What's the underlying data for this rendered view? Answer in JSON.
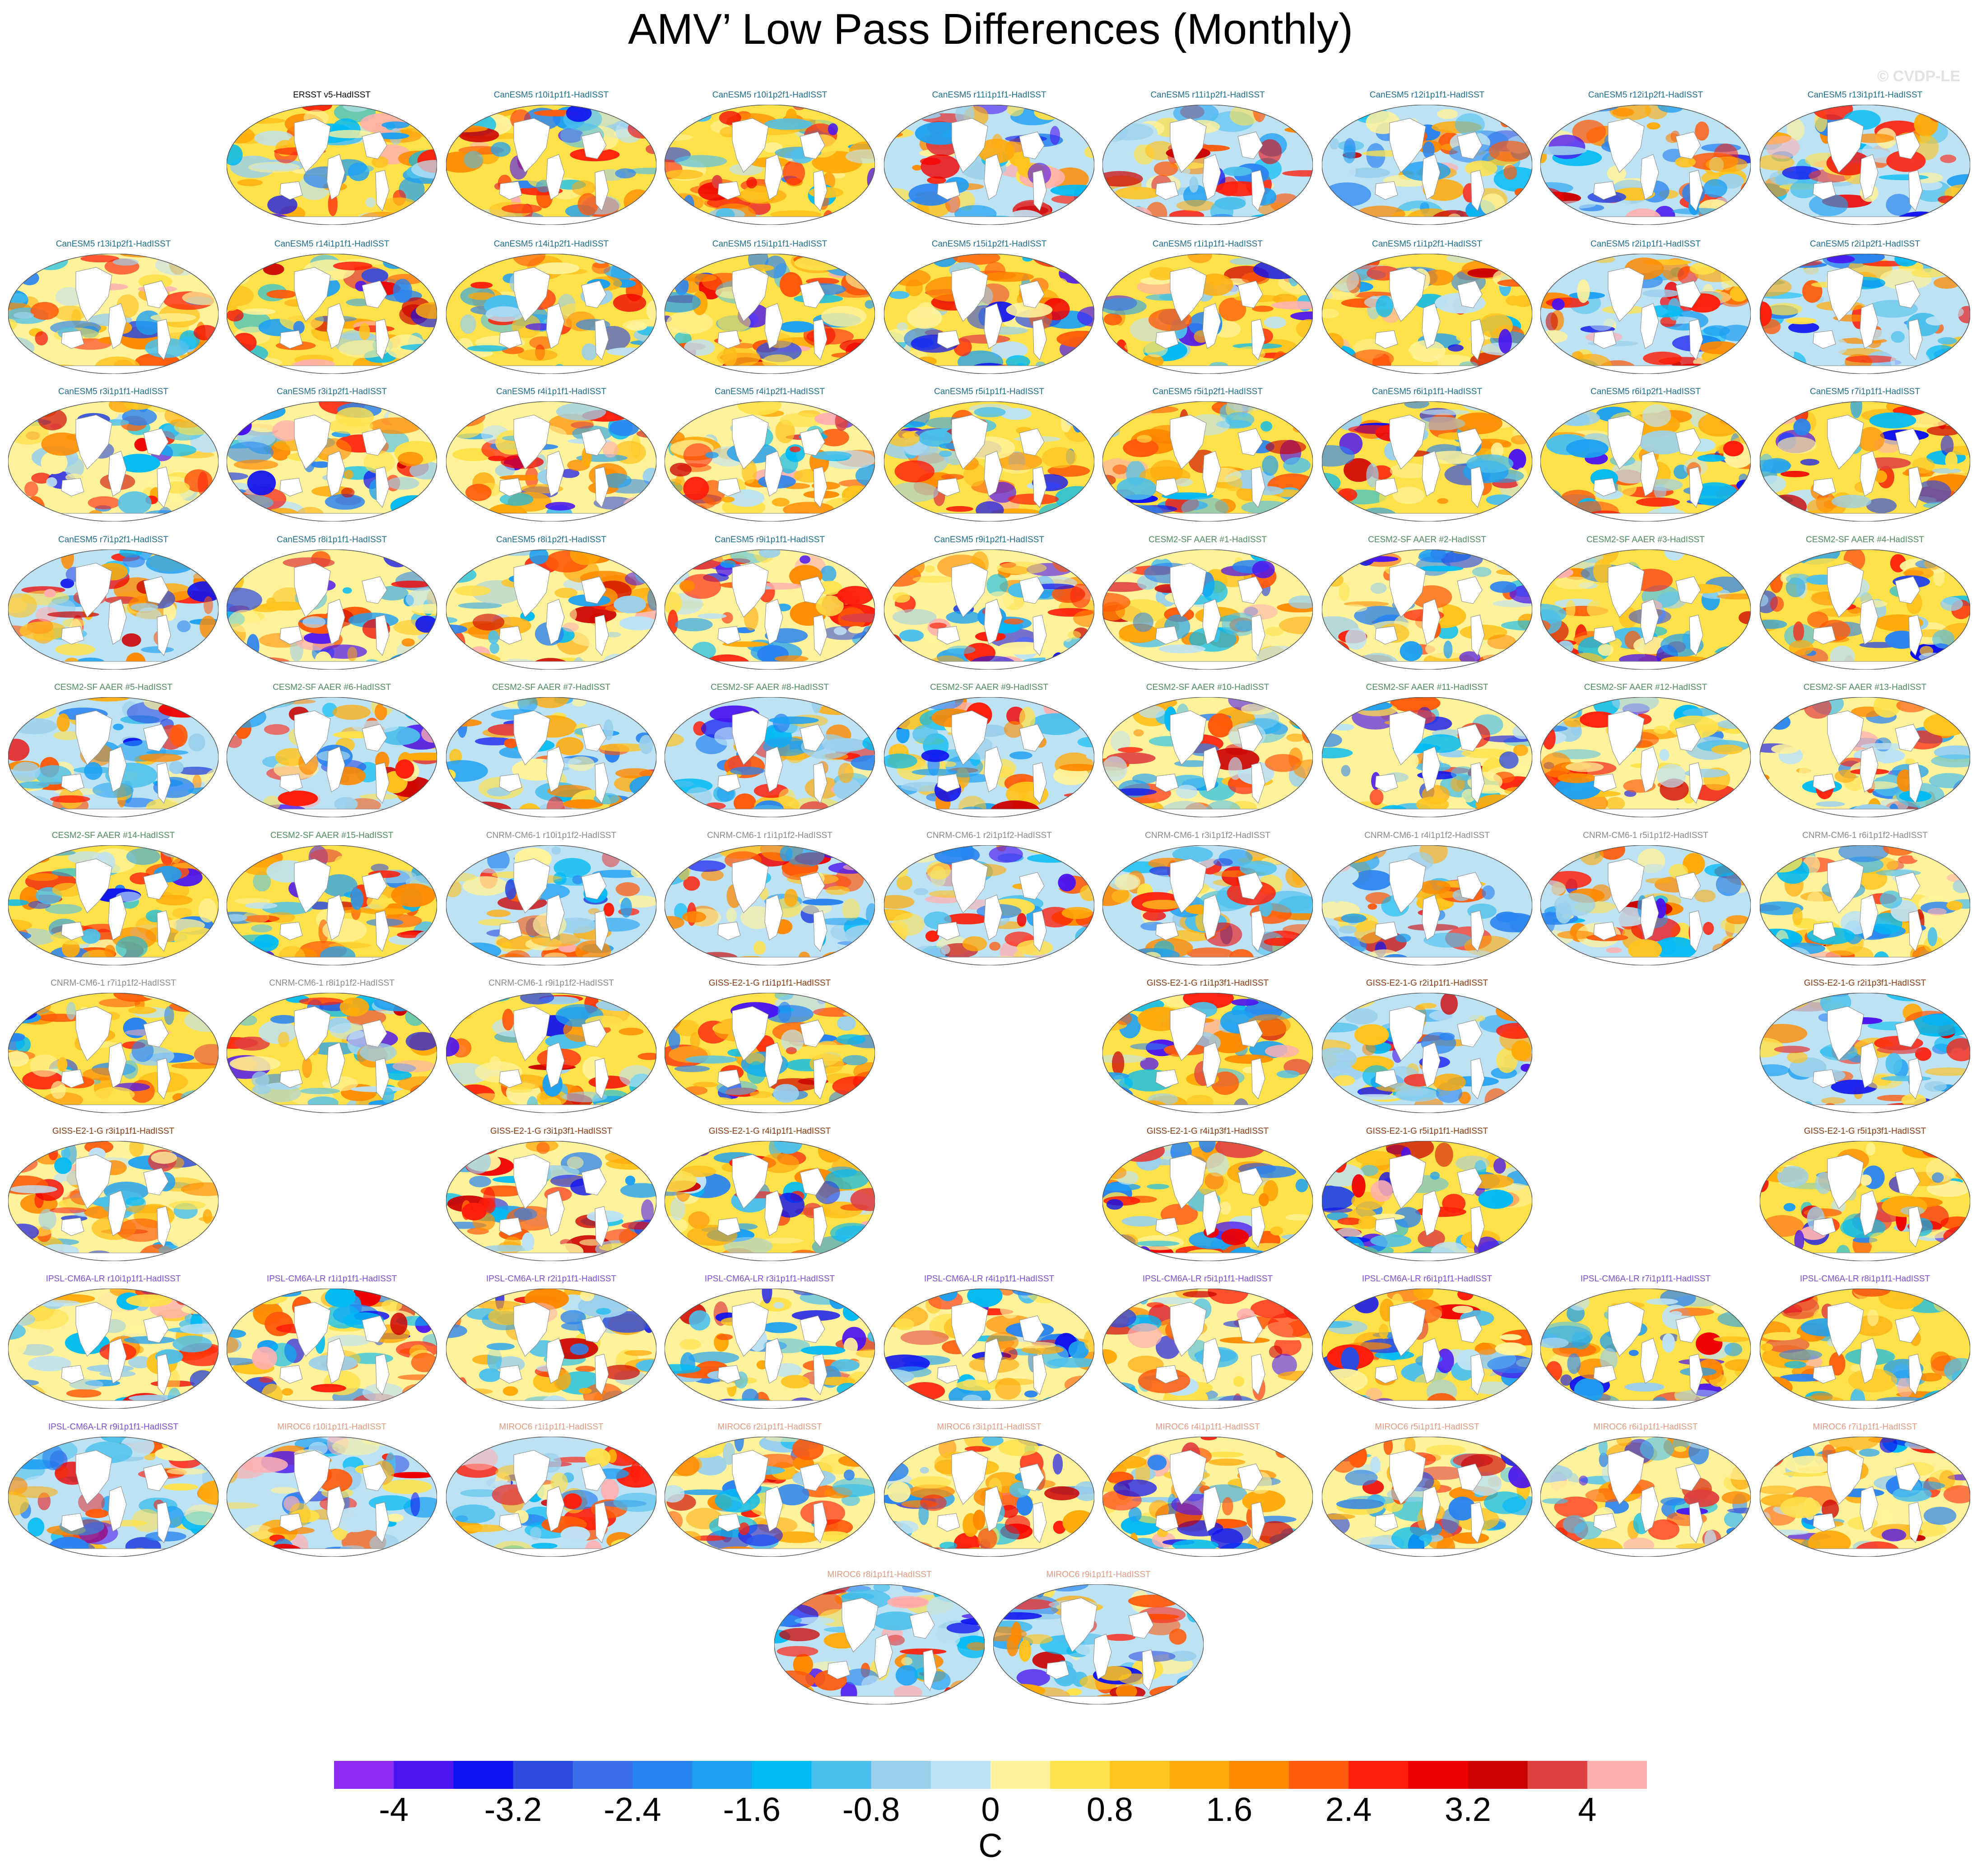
{
  "title": "AMV’ Low Pass Differences (Monthly)",
  "watermark": "© CVDP-LE",
  "colors": {
    "ERSST": "#000000",
    "CanESM5": "#1f6e8c",
    "CESM2": "#4e8a5e",
    "CNRM": "#8a8a8a",
    "GISS": "#8b3a0f",
    "IPSL": "#7a4fd6",
    "MIROC": "#e39a80"
  },
  "rows": [
    [
      {
        "col": 1,
        "label": "ERSST v5-HadISST",
        "group": "ERSST"
      },
      {
        "col": 2,
        "label": "CanESM5 r10i1p1f1-HadISST",
        "group": "CanESM5"
      },
      {
        "col": 3,
        "label": "CanESM5 r10i1p2f1-HadISST",
        "group": "CanESM5"
      },
      {
        "col": 4,
        "label": "CanESM5 r11i1p1f1-HadISST",
        "group": "CanESM5"
      },
      {
        "col": 5,
        "label": "CanESM5 r11i1p2f1-HadISST",
        "group": "CanESM5"
      },
      {
        "col": 6,
        "label": "CanESM5 r12i1p1f1-HadISST",
        "group": "CanESM5"
      },
      {
        "col": 7,
        "label": "CanESM5 r12i1p2f1-HadISST",
        "group": "CanESM5"
      },
      {
        "col": 8,
        "label": "CanESM5 r13i1p1f1-HadISST",
        "group": "CanESM5"
      }
    ],
    [
      {
        "col": 0,
        "label": "CanESM5 r13i1p2f1-HadISST",
        "group": "CanESM5"
      },
      {
        "col": 1,
        "label": "CanESM5 r14i1p1f1-HadISST",
        "group": "CanESM5"
      },
      {
        "col": 2,
        "label": "CanESM5 r14i1p2f1-HadISST",
        "group": "CanESM5"
      },
      {
        "col": 3,
        "label": "CanESM5 r15i1p1f1-HadISST",
        "group": "CanESM5"
      },
      {
        "col": 4,
        "label": "CanESM5 r15i1p2f1-HadISST",
        "group": "CanESM5"
      },
      {
        "col": 5,
        "label": "CanESM5 r1i1p1f1-HadISST",
        "group": "CanESM5"
      },
      {
        "col": 6,
        "label": "CanESM5 r1i1p2f1-HadISST",
        "group": "CanESM5"
      },
      {
        "col": 7,
        "label": "CanESM5 r2i1p1f1-HadISST",
        "group": "CanESM5"
      },
      {
        "col": 8,
        "label": "CanESM5 r2i1p2f1-HadISST",
        "group": "CanESM5"
      }
    ],
    [
      {
        "col": 0,
        "label": "CanESM5 r3i1p1f1-HadISST",
        "group": "CanESM5"
      },
      {
        "col": 1,
        "label": "CanESM5 r3i1p2f1-HadISST",
        "group": "CanESM5"
      },
      {
        "col": 2,
        "label": "CanESM5 r4i1p1f1-HadISST",
        "group": "CanESM5"
      },
      {
        "col": 3,
        "label": "CanESM5 r4i1p2f1-HadISST",
        "group": "CanESM5"
      },
      {
        "col": 4,
        "label": "CanESM5 r5i1p1f1-HadISST",
        "group": "CanESM5"
      },
      {
        "col": 5,
        "label": "CanESM5 r5i1p2f1-HadISST",
        "group": "CanESM5"
      },
      {
        "col": 6,
        "label": "CanESM5 r6i1p1f1-HadISST",
        "group": "CanESM5"
      },
      {
        "col": 7,
        "label": "CanESM5 r6i1p2f1-HadISST",
        "group": "CanESM5"
      },
      {
        "col": 8,
        "label": "CanESM5 r7i1p1f1-HadISST",
        "group": "CanESM5"
      }
    ],
    [
      {
        "col": 0,
        "label": "CanESM5 r7i1p2f1-HadISST",
        "group": "CanESM5"
      },
      {
        "col": 1,
        "label": "CanESM5 r8i1p1f1-HadISST",
        "group": "CanESM5"
      },
      {
        "col": 2,
        "label": "CanESM5 r8i1p2f1-HadISST",
        "group": "CanESM5"
      },
      {
        "col": 3,
        "label": "CanESM5 r9i1p1f1-HadISST",
        "group": "CanESM5"
      },
      {
        "col": 4,
        "label": "CanESM5 r9i1p2f1-HadISST",
        "group": "CanESM5"
      },
      {
        "col": 5,
        "label": "CESM2-SF AAER #1-HadISST",
        "group": "CESM2"
      },
      {
        "col": 6,
        "label": "CESM2-SF AAER #2-HadISST",
        "group": "CESM2"
      },
      {
        "col": 7,
        "label": "CESM2-SF AAER #3-HadISST",
        "group": "CESM2"
      },
      {
        "col": 8,
        "label": "CESM2-SF AAER #4-HadISST",
        "group": "CESM2"
      }
    ],
    [
      {
        "col": 0,
        "label": "CESM2-SF AAER #5-HadISST",
        "group": "CESM2"
      },
      {
        "col": 1,
        "label": "CESM2-SF AAER #6-HadISST",
        "group": "CESM2"
      },
      {
        "col": 2,
        "label": "CESM2-SF AAER #7-HadISST",
        "group": "CESM2"
      },
      {
        "col": 3,
        "label": "CESM2-SF AAER #8-HadISST",
        "group": "CESM2"
      },
      {
        "col": 4,
        "label": "CESM2-SF AAER #9-HadISST",
        "group": "CESM2"
      },
      {
        "col": 5,
        "label": "CESM2-SF AAER #10-HadISST",
        "group": "CESM2"
      },
      {
        "col": 6,
        "label": "CESM2-SF AAER #11-HadISST",
        "group": "CESM2"
      },
      {
        "col": 7,
        "label": "CESM2-SF AAER #12-HadISST",
        "group": "CESM2"
      },
      {
        "col": 8,
        "label": "CESM2-SF AAER #13-HadISST",
        "group": "CESM2"
      }
    ],
    [
      {
        "col": 0,
        "label": "CESM2-SF AAER #14-HadISST",
        "group": "CESM2"
      },
      {
        "col": 1,
        "label": "CESM2-SF AAER #15-HadISST",
        "group": "CESM2"
      },
      {
        "col": 2,
        "label": "CNRM-CM6-1 r10i1p1f2-HadISST",
        "group": "CNRM"
      },
      {
        "col": 3,
        "label": "CNRM-CM6-1 r1i1p1f2-HadISST",
        "group": "CNRM"
      },
      {
        "col": 4,
        "label": "CNRM-CM6-1 r2i1p1f2-HadISST",
        "group": "CNRM"
      },
      {
        "col": 5,
        "label": "CNRM-CM6-1 r3i1p1f2-HadISST",
        "group": "CNRM"
      },
      {
        "col": 6,
        "label": "CNRM-CM6-1 r4i1p1f2-HadISST",
        "group": "CNRM"
      },
      {
        "col": 7,
        "label": "CNRM-CM6-1 r5i1p1f2-HadISST",
        "group": "CNRM"
      },
      {
        "col": 8,
        "label": "CNRM-CM6-1 r6i1p1f2-HadISST",
        "group": "CNRM"
      }
    ],
    [
      {
        "col": 0,
        "label": "CNRM-CM6-1 r7i1p1f2-HadISST",
        "group": "CNRM"
      },
      {
        "col": 1,
        "label": "CNRM-CM6-1 r8i1p1f2-HadISST",
        "group": "CNRM"
      },
      {
        "col": 2,
        "label": "CNRM-CM6-1 r9i1p1f2-HadISST",
        "group": "CNRM"
      },
      {
        "col": 3,
        "label": "GISS-E2-1-G r1i1p1f1-HadISST",
        "group": "GISS"
      },
      {
        "col": 5,
        "label": "GISS-E2-1-G r1i1p3f1-HadISST",
        "group": "GISS"
      },
      {
        "col": 6,
        "label": "GISS-E2-1-G r2i1p1f1-HadISST",
        "group": "GISS"
      },
      {
        "col": 8,
        "label": "GISS-E2-1-G r2i1p3f1-HadISST",
        "group": "GISS"
      }
    ],
    [
      {
        "col": 0,
        "label": "GISS-E2-1-G r3i1p1f1-HadISST",
        "group": "GISS"
      },
      {
        "col": 2,
        "label": "GISS-E2-1-G r3i1p3f1-HadISST",
        "group": "GISS"
      },
      {
        "col": 3,
        "label": "GISS-E2-1-G r4i1p1f1-HadISST",
        "group": "GISS"
      },
      {
        "col": 5,
        "label": "GISS-E2-1-G r4i1p3f1-HadISST",
        "group": "GISS"
      },
      {
        "col": 6,
        "label": "GISS-E2-1-G r5i1p1f1-HadISST",
        "group": "GISS"
      },
      {
        "col": 8,
        "label": "GISS-E2-1-G r5i1p3f1-HadISST",
        "group": "GISS"
      }
    ],
    [
      {
        "col": 0,
        "label": "IPSL-CM6A-LR r10i1p1f1-HadISST",
        "group": "IPSL"
      },
      {
        "col": 1,
        "label": "IPSL-CM6A-LR r1i1p1f1-HadISST",
        "group": "IPSL"
      },
      {
        "col": 2,
        "label": "IPSL-CM6A-LR r2i1p1f1-HadISST",
        "group": "IPSL"
      },
      {
        "col": 3,
        "label": "IPSL-CM6A-LR r3i1p1f1-HadISST",
        "group": "IPSL"
      },
      {
        "col": 4,
        "label": "IPSL-CM6A-LR r4i1p1f1-HadISST",
        "group": "IPSL"
      },
      {
        "col": 5,
        "label": "IPSL-CM6A-LR r5i1p1f1-HadISST",
        "group": "IPSL"
      },
      {
        "col": 6,
        "label": "IPSL-CM6A-LR r6i1p1f1-HadISST",
        "group": "IPSL"
      },
      {
        "col": 7,
        "label": "IPSL-CM6A-LR r7i1p1f1-HadISST",
        "group": "IPSL"
      },
      {
        "col": 8,
        "label": "IPSL-CM6A-LR r8i1p1f1-HadISST",
        "group": "IPSL"
      }
    ],
    [
      {
        "col": 0,
        "label": "IPSL-CM6A-LR r9i1p1f1-HadISST",
        "group": "IPSL"
      },
      {
        "col": 1,
        "label": "MIROC6 r10i1p1f1-HadISST",
        "group": "MIROC"
      },
      {
        "col": 2,
        "label": "MIROC6 r1i1p1f1-HadISST",
        "group": "MIROC"
      },
      {
        "col": 3,
        "label": "MIROC6 r2i1p1f1-HadISST",
        "group": "MIROC"
      },
      {
        "col": 4,
        "label": "MIROC6 r3i1p1f1-HadISST",
        "group": "MIROC"
      },
      {
        "col": 5,
        "label": "MIROC6 r4i1p1f1-HadISST",
        "group": "MIROC"
      },
      {
        "col": 6,
        "label": "MIROC6 r5i1p1f1-HadISST",
        "group": "MIROC"
      },
      {
        "col": 7,
        "label": "MIROC6 r6i1p1f1-HadISST",
        "group": "MIROC"
      },
      {
        "col": 8,
        "label": "MIROC6 r7i1p1f1-HadISST",
        "group": "MIROC"
      }
    ],
    [
      {
        "col": 3.5,
        "label": "MIROC6 r8i1p1f1-HadISST",
        "group": "MIROC"
      },
      {
        "col": 4.5,
        "label": "MIROC6 r9i1p1f1-HadISST",
        "group": "MIROC"
      }
    ]
  ],
  "colorbar": {
    "colors": [
      "#8b2bf0",
      "#4a14f0",
      "#0f12f0",
      "#2c4be0",
      "#3a6ee8",
      "#2a84f0",
      "#1ea0f2",
      "#00baf4",
      "#4cc0ec",
      "#9ad0ec",
      "#bde2f4",
      "#fff29a",
      "#ffe14a",
      "#ffc31e",
      "#ffaa0a",
      "#ff8a00",
      "#ff5a0a",
      "#ff1e0a",
      "#f00000",
      "#cc0000",
      "#e04040",
      "#ffb0b0"
    ],
    "ticks": [
      "-4",
      "-3.2",
      "-2.4",
      "-1.6",
      "-0.8",
      "0",
      "0.8",
      "1.6",
      "2.4",
      "3.2",
      "4"
    ],
    "units": "C"
  }
}
